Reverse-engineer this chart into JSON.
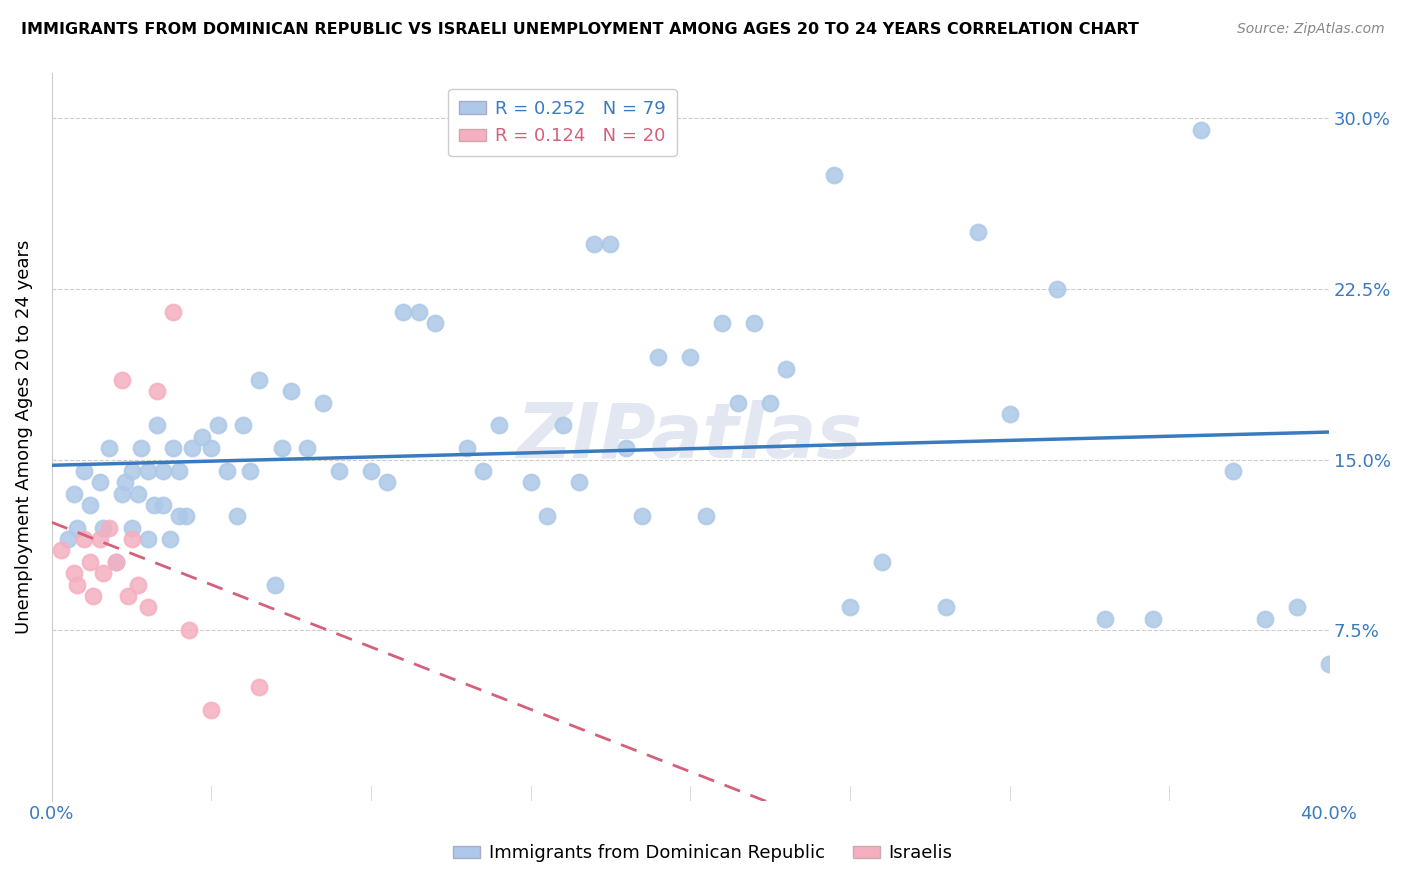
{
  "title": "IMMIGRANTS FROM DOMINICAN REPUBLIC VS ISRAELI UNEMPLOYMENT AMONG AGES 20 TO 24 YEARS CORRELATION CHART",
  "source": "Source: ZipAtlas.com",
  "ylabel_label": "Unemployment Among Ages 20 to 24 years",
  "xlim": [
    0.0,
    0.4
  ],
  "ylim": [
    0.0,
    0.32
  ],
  "yticks": [
    0.075,
    0.15,
    0.225,
    0.3
  ],
  "ytick_labels": [
    "7.5%",
    "15.0%",
    "22.5%",
    "30.0%"
  ],
  "xtick_positions": [
    0.0,
    0.05,
    0.1,
    0.15,
    0.2,
    0.25,
    0.3,
    0.35,
    0.4
  ],
  "xtick_labels": [
    "0.0%",
    "",
    "",
    "",
    "",
    "",
    "",
    "",
    "40.0%"
  ],
  "legend_blue_R": "0.252",
  "legend_blue_N": "79",
  "legend_pink_R": "0.124",
  "legend_pink_N": "20",
  "blue_color": "#adc8e8",
  "blue_line_color": "#3a7abf",
  "pink_color": "#f5afc0",
  "pink_line_color": "#d4607a",
  "watermark": "ZIPatlas",
  "blue_x": [
    0.005,
    0.007,
    0.008,
    0.01,
    0.012,
    0.015,
    0.016,
    0.018,
    0.02,
    0.022,
    0.023,
    0.025,
    0.025,
    0.027,
    0.028,
    0.03,
    0.03,
    0.032,
    0.033,
    0.035,
    0.035,
    0.037,
    0.038,
    0.04,
    0.04,
    0.042,
    0.044,
    0.047,
    0.05,
    0.052,
    0.055,
    0.058,
    0.06,
    0.062,
    0.065,
    0.07,
    0.072,
    0.075,
    0.08,
    0.085,
    0.09,
    0.1,
    0.105,
    0.11,
    0.115,
    0.12,
    0.13,
    0.135,
    0.14,
    0.15,
    0.155,
    0.16,
    0.165,
    0.17,
    0.175,
    0.18,
    0.185,
    0.19,
    0.2,
    0.205,
    0.21,
    0.215,
    0.22,
    0.225,
    0.23,
    0.245,
    0.25,
    0.26,
    0.28,
    0.29,
    0.3,
    0.315,
    0.33,
    0.345,
    0.36,
    0.37,
    0.38,
    0.39,
    0.4
  ],
  "blue_y": [
    0.115,
    0.135,
    0.12,
    0.145,
    0.13,
    0.14,
    0.12,
    0.155,
    0.105,
    0.135,
    0.14,
    0.145,
    0.12,
    0.135,
    0.155,
    0.145,
    0.115,
    0.13,
    0.165,
    0.145,
    0.13,
    0.115,
    0.155,
    0.145,
    0.125,
    0.125,
    0.155,
    0.16,
    0.155,
    0.165,
    0.145,
    0.125,
    0.165,
    0.145,
    0.185,
    0.095,
    0.155,
    0.18,
    0.155,
    0.175,
    0.145,
    0.145,
    0.14,
    0.215,
    0.215,
    0.21,
    0.155,
    0.145,
    0.165,
    0.14,
    0.125,
    0.165,
    0.14,
    0.245,
    0.245,
    0.155,
    0.125,
    0.195,
    0.195,
    0.125,
    0.21,
    0.175,
    0.21,
    0.175,
    0.19,
    0.275,
    0.085,
    0.105,
    0.085,
    0.25,
    0.17,
    0.225,
    0.08,
    0.08,
    0.295,
    0.145,
    0.08,
    0.085,
    0.06
  ],
  "pink_x": [
    0.003,
    0.007,
    0.008,
    0.01,
    0.012,
    0.013,
    0.015,
    0.016,
    0.018,
    0.02,
    0.022,
    0.024,
    0.025,
    0.027,
    0.03,
    0.033,
    0.038,
    0.043,
    0.05,
    0.065
  ],
  "pink_y": [
    0.11,
    0.1,
    0.095,
    0.115,
    0.105,
    0.09,
    0.115,
    0.1,
    0.12,
    0.105,
    0.185,
    0.09,
    0.115,
    0.095,
    0.085,
    0.18,
    0.215,
    0.075,
    0.04,
    0.05
  ]
}
